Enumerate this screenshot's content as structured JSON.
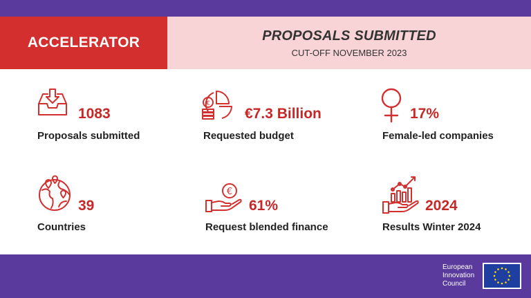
{
  "header": {
    "program": "ACCELERATOR",
    "title": "PROPOSALS SUBMITTED",
    "subtitle": "CUT-OFF NOVEMBER 2023"
  },
  "stats": [
    {
      "value": "1083",
      "label": "Proposals submitted",
      "icon": "inbox-download-icon"
    },
    {
      "value": "€7.3 Billion",
      "label": "Requested budget",
      "icon": "pie-chart-coins-icon"
    },
    {
      "value": "17%",
      "label": "Female-led companies",
      "icon": "female-symbol-icon"
    },
    {
      "value": "39",
      "label": "Countries",
      "icon": "globe-pins-icon"
    },
    {
      "value": "61%",
      "label": "Request blended finance",
      "icon": "hand-euro-icon"
    },
    {
      "value": "2024",
      "label": "Results Winter 2024",
      "icon": "hand-growth-chart-icon"
    }
  ],
  "footer": {
    "org_line1": "European",
    "org_line2": "Innovation",
    "org_line3": "Council",
    "flag_icon": "eu-flag-icon"
  },
  "colors": {
    "purple": "#5a3a9c",
    "red": "#d32f2f",
    "pink": "#f8d4d6",
    "accent_text": "#c62828"
  }
}
